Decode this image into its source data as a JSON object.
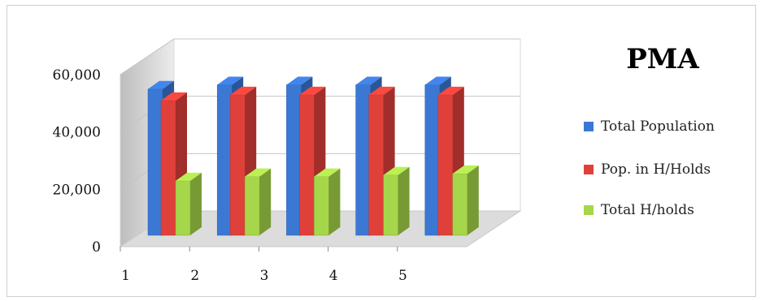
{
  "chart_data": {
    "type": "bar",
    "title": "PMA",
    "categories": [
      "1",
      "2",
      "3",
      "4",
      "5"
    ],
    "series": [
      {
        "name": "Total Population",
        "values": [
          51000,
          52500,
          52500,
          52500,
          52500
        ],
        "color": "#3b78d4"
      },
      {
        "name": "Pop. in H/Holds",
        "values": [
          47000,
          49000,
          49000,
          49000,
          49000
        ],
        "color": "#e0403a"
      },
      {
        "name": "Total H/holds",
        "values": [
          19000,
          20500,
          20500,
          21000,
          21500
        ],
        "color": "#a6d64a"
      }
    ],
    "y_ticks": [
      "0",
      "20,000",
      "40,000",
      "60,000"
    ],
    "ylim": [
      0,
      60000
    ],
    "grid": true,
    "legend_position": "right"
  }
}
